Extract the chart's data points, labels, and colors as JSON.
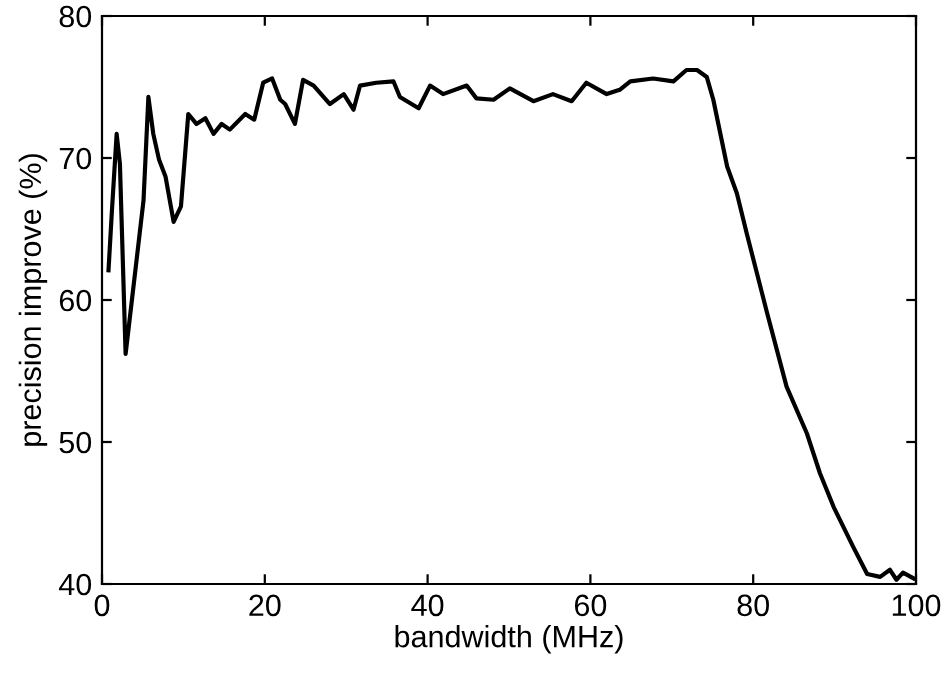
{
  "chart_data": {
    "type": "line",
    "xlabel": "bandwidth (MHz)",
    "ylabel": "precision improve (%)",
    "xlim": [
      0,
      100
    ],
    "xticks": [
      0,
      20,
      40,
      60,
      80,
      100
    ],
    "ylim": [
      40,
      80
    ],
    "yticks": [
      40,
      50,
      60,
      70,
      80
    ],
    "grid": false,
    "series": [
      {
        "color": "#000000",
        "x": [
          0.8,
          1.2,
          1.8,
          2.2,
          2.9,
          5.1,
          5.7,
          6.3,
          7.0,
          7.8,
          8.8,
          9.7,
          10.6,
          11.6,
          12.7,
          13.7,
          14.7,
          15.7,
          17.6,
          18.7,
          19.8,
          20.9,
          21.9,
          22.5,
          23.7,
          24.7,
          26,
          28,
          29.7,
          30.9,
          31.7,
          33.7,
          35.8,
          36.6,
          38.9,
          40.3,
          41.9,
          44.8,
          46,
          48.1,
          50.1,
          53,
          55.4,
          57.7,
          59.5,
          62,
          63.6,
          64.9,
          67.7,
          70.2,
          71.8,
          73.1,
          74.3,
          75.1,
          76.8,
          78,
          79.2,
          81.7,
          84.1,
          86.6,
          88.2,
          89.9,
          92.3,
          94,
          95.6,
          96.8,
          97.6,
          98.4,
          99.7
        ],
        "values": [
          62.1,
          66.1,
          71.7,
          69.6,
          56.2,
          67,
          74.3,
          71.7,
          69.9,
          68.7,
          65.5,
          66.6,
          73.1,
          72.4,
          72.8,
          71.7,
          72.4,
          72,
          73.1,
          72.7,
          75.3,
          75.6,
          74.1,
          73.8,
          72.4,
          75.5,
          75.1,
          73.8,
          74.5,
          73.4,
          75.1,
          75.3,
          75.4,
          74.3,
          73.5,
          75.1,
          74.5,
          75.1,
          74.2,
          74.1,
          74.9,
          74,
          74.5,
          74,
          75.3,
          74.5,
          74.8,
          75.4,
          75.6,
          75.4,
          76.2,
          76.2,
          75.7,
          74.1,
          69.4,
          67.5,
          64.7,
          59.1,
          53.9,
          50.6,
          47.8,
          45.4,
          42.6,
          40.7,
          40.5,
          41,
          40.3,
          40.8,
          40.4
        ]
      }
    ]
  }
}
